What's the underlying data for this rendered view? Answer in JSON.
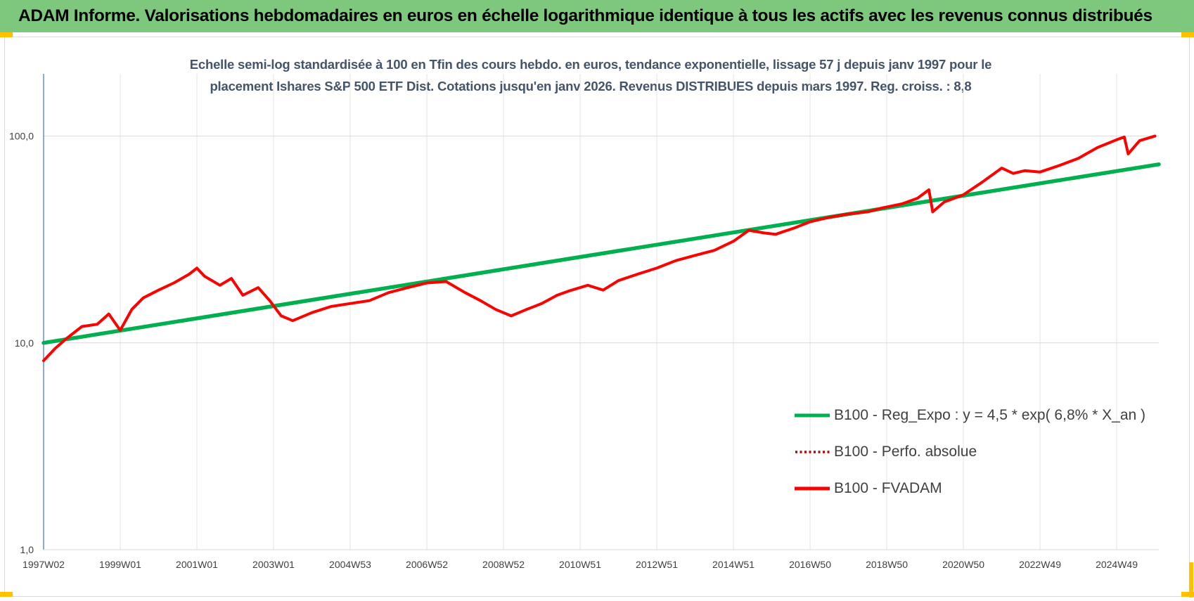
{
  "header": {
    "title": "ADAM Informe. Valorisations hebdomadaires en euros en échelle logarithmique identique à tous les actifs avec les revenus connus distribués"
  },
  "colors": {
    "banner": "#7ec87e",
    "regression": "#00b050",
    "fvadam": "#ff0000",
    "perfo": "#c00000",
    "corner": "#ffc000",
    "title_text": "#44546a"
  },
  "chart_data": {
    "type": "line",
    "title_lines": [
      "Echelle semi-log standardisée à 100 en Tfin des cours hebdo. en euros, tendance exponentielle, lissage 57 j depuis janv 1997 pour le",
      "placement Ishares S&P 500 ETF Dist. Cotations jusqu'en janv 2026. Revenus DISTRIBUES depuis mars 1997. Reg. croiss. : 8,8"
    ],
    "yscale": "log",
    "ylim": [
      1,
      200
    ],
    "xlim": [
      1997.0,
      2026.1
    ],
    "y_ticks": [
      {
        "value": 1,
        "label": "1,0"
      },
      {
        "value": 10,
        "label": "10,0"
      },
      {
        "value": 100,
        "label": "100,0"
      }
    ],
    "x_ticks": [
      {
        "value": 1997.0,
        "label": "1997W02"
      },
      {
        "value": 1999.0,
        "label": "1999W01"
      },
      {
        "value": 2001.0,
        "label": "2001W01"
      },
      {
        "value": 2003.0,
        "label": "2003W01"
      },
      {
        "value": 2005.0,
        "label": "2004W53"
      },
      {
        "value": 2007.0,
        "label": "2006W52"
      },
      {
        "value": 2009.0,
        "label": "2008W52"
      },
      {
        "value": 2011.0,
        "label": "2010W51"
      },
      {
        "value": 2013.0,
        "label": "2012W51"
      },
      {
        "value": 2015.0,
        "label": "2014W51"
      },
      {
        "value": 2017.0,
        "label": "2016W50"
      },
      {
        "value": 2019.0,
        "label": "2018W50"
      },
      {
        "value": 2021.0,
        "label": "2020W50"
      },
      {
        "value": 2023.0,
        "label": "2022W49"
      },
      {
        "value": 2025.0,
        "label": "2024W49"
      }
    ],
    "grid": true,
    "legend_position": "bottom-right",
    "series": [
      {
        "name": "B100 - Reg_Expo : y = 4,5 * exp( 6,8% *  X_an )",
        "style": "solid",
        "x": [
          1997.0,
          2026.1
        ],
        "y": [
          10.0,
          73.0
        ]
      },
      {
        "name": "B100 - Perfo. absolue",
        "style": "dotted",
        "x": [],
        "y": []
      },
      {
        "name": "B100 - FVADAM",
        "style": "solid",
        "x": [
          1997.0,
          1997.3,
          1997.6,
          1998.0,
          1998.4,
          1998.7,
          1999.0,
          1999.3,
          1999.6,
          2000.0,
          2000.4,
          2000.8,
          2001.0,
          2001.2,
          2001.6,
          2001.9,
          2002.2,
          2002.6,
          2002.9,
          2003.2,
          2003.5,
          2004.0,
          2004.5,
          2005.0,
          2005.5,
          2006.0,
          2006.5,
          2007.0,
          2007.5,
          2008.0,
          2008.4,
          2008.8,
          2009.2,
          2009.6,
          2010.0,
          2010.4,
          2010.7,
          2011.2,
          2011.6,
          2012.0,
          2012.5,
          2013.0,
          2013.5,
          2014.0,
          2014.5,
          2015.0,
          2015.4,
          2015.8,
          2016.1,
          2016.6,
          2017.0,
          2017.5,
          2018.0,
          2018.5,
          2018.9,
          2019.4,
          2019.8,
          2020.1,
          2020.2,
          2020.5,
          2021.0,
          2021.5,
          2022.0,
          2022.3,
          2022.6,
          2023.0,
          2023.5,
          2024.0,
          2024.5,
          2025.0,
          2025.2,
          2025.3,
          2025.6,
          2026.0
        ],
        "y": [
          8.2,
          9.4,
          10.5,
          12.0,
          12.3,
          13.8,
          11.5,
          14.5,
          16.5,
          18.0,
          19.5,
          21.5,
          23.0,
          21.0,
          19.0,
          20.5,
          17.0,
          18.5,
          16.0,
          13.5,
          12.8,
          14.0,
          15.0,
          15.5,
          16.0,
          17.5,
          18.5,
          19.5,
          19.8,
          17.5,
          16.0,
          14.5,
          13.5,
          14.5,
          15.5,
          17.0,
          17.8,
          19.0,
          18.0,
          20.0,
          21.5,
          23.0,
          25.0,
          26.5,
          28.0,
          31.0,
          35.0,
          34.0,
          33.5,
          36.0,
          38.5,
          40.5,
          42.0,
          43.0,
          45.0,
          47.0,
          50.0,
          55.0,
          43.0,
          48.0,
          52.0,
          60.0,
          70.0,
          66.0,
          68.0,
          67.0,
          72.0,
          78.0,
          88.0,
          96.0,
          99.0,
          82.0,
          95.0,
          100.0
        ]
      }
    ]
  }
}
